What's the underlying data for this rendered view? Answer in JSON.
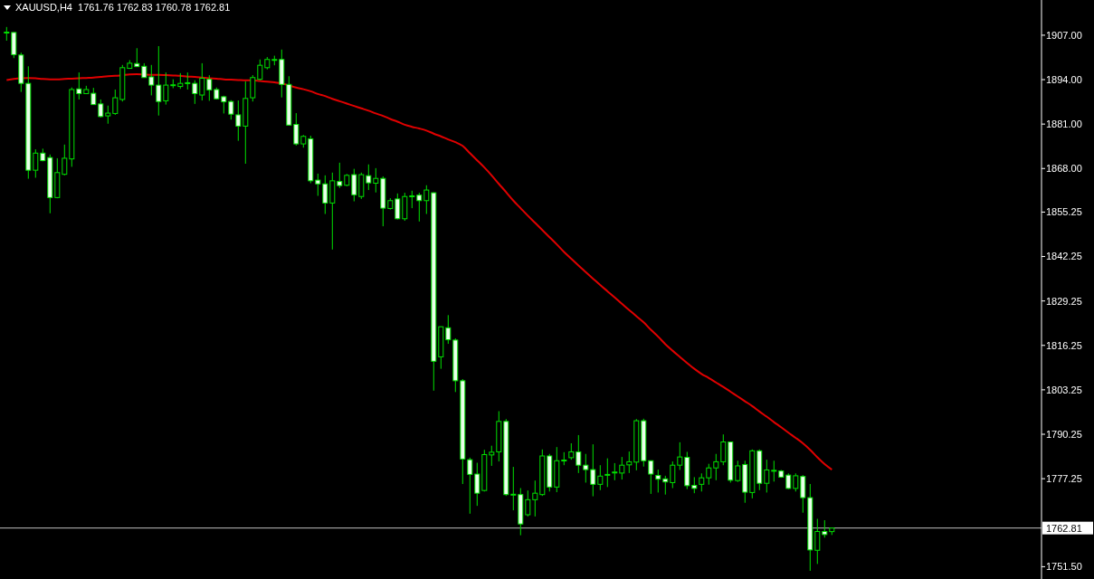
{
  "chart_data": {
    "type": "candlestick",
    "title": "XAUUSD,H4  1761.76 1762.83 1760.78 1762.81",
    "categories": [
      null,
      null,
      null,
      null,
      null,
      null,
      null,
      null,
      null,
      null,
      null,
      null,
      null,
      null,
      null,
      null,
      null,
      null,
      null,
      null,
      null,
      null,
      null,
      null,
      null,
      null,
      null,
      null,
      null,
      null,
      null,
      null,
      null,
      null,
      null,
      null,
      null,
      null,
      null,
      null,
      null,
      null,
      null,
      null,
      null,
      null,
      null,
      null,
      null,
      null,
      null,
      null,
      null,
      null,
      null,
      null,
      null,
      null,
      null,
      null,
      null,
      null,
      null,
      null,
      null,
      null,
      null,
      null,
      null,
      null,
      null,
      null,
      null,
      null,
      null,
      null,
      null,
      null,
      null,
      null,
      null,
      null,
      null,
      null,
      null,
      null,
      null,
      null,
      null,
      null,
      null,
      null,
      null,
      null,
      null,
      null,
      null,
      null,
      null,
      null,
      null,
      null,
      null,
      null,
      null,
      null,
      null,
      null,
      null,
      null,
      null,
      null,
      null,
      null,
      null
    ],
    "color": "#00e000",
    "ohlc": [
      [
        1907.9,
        1909.4,
        1905.4,
        1907.9
      ],
      [
        1907.8,
        1907.8,
        1900.3,
        1901.3
      ],
      [
        1901.2,
        1901.9,
        1890.4,
        1892.9
      ],
      [
        1892.9,
        1897.9,
        1865.0,
        1867.5
      ],
      [
        1867.5,
        1873.6,
        1865.3,
        1872.5
      ],
      [
        1872.5,
        1873.8,
        1870.1,
        1870.3
      ],
      [
        1871.2,
        1872.1,
        1854.9,
        1859.5
      ],
      [
        1859.5,
        1871.0,
        1859.3,
        1866.8
      ],
      [
        1866.3,
        1875.0,
        1866.0,
        1871.0
      ],
      [
        1870.8,
        1891.7,
        1868.5,
        1891.1
      ],
      [
        1891.3,
        1896.1,
        1888.2,
        1889.9
      ],
      [
        1889.9,
        1892.2,
        1889.9,
        1891.1
      ],
      [
        1890.0,
        1891.6,
        1886.7,
        1886.7
      ],
      [
        1886.9,
        1888.2,
        1882.9,
        1883.2
      ],
      [
        1883.4,
        1886.4,
        1881.1,
        1884.2
      ],
      [
        1884.1,
        1891.1,
        1883.7,
        1888.7
      ],
      [
        1888.2,
        1898.3,
        1887.6,
        1897.5
      ],
      [
        1897.3,
        1899.7,
        1897.3,
        1898.8
      ],
      [
        1898.7,
        1903.2,
        1897.8,
        1897.8
      ],
      [
        1897.9,
        1898.8,
        1894.6,
        1894.6
      ],
      [
        1894.8,
        1898.3,
        1889.4,
        1892.4
      ],
      [
        1892.4,
        1903.8,
        1883.5,
        1887.6
      ],
      [
        1887.8,
        1896.1,
        1886.7,
        1892.4
      ],
      [
        1892.4,
        1894.1,
        1891.5,
        1892.5
      ],
      [
        1892.0,
        1895.9,
        1891.3,
        1892.9
      ],
      [
        1893.0,
        1896.1,
        1891.1,
        1893.1
      ],
      [
        1892.9,
        1893.8,
        1886.9,
        1889.9
      ],
      [
        1889.5,
        1898.8,
        1887.9,
        1894.4
      ],
      [
        1894.1,
        1895.3,
        1887.8,
        1891.0
      ],
      [
        1891.1,
        1891.7,
        1888.2,
        1888.4
      ],
      [
        1889.0,
        1889.3,
        1884.1,
        1887.5
      ],
      [
        1887.6,
        1888.0,
        1882.3,
        1883.9
      ],
      [
        1883.7,
        1887.9,
        1876.1,
        1880.4
      ],
      [
        1880.4,
        1893.5,
        1869.4,
        1888.5
      ],
      [
        1888.7,
        1895.3,
        1887.6,
        1894.6
      ],
      [
        1894.1,
        1899.9,
        1893.8,
        1898.2
      ],
      [
        1897.5,
        1900.6,
        1897.0,
        1899.9
      ],
      [
        1899.9,
        1901.0,
        1898.2,
        1899.9
      ],
      [
        1899.9,
        1902.8,
        1888.8,
        1892.6
      ],
      [
        1892.6,
        1895.0,
        1880.7,
        1880.7
      ],
      [
        1880.9,
        1884.2,
        1874.7,
        1875.2
      ],
      [
        1875.2,
        1877.8,
        1874.1,
        1877.4
      ],
      [
        1876.7,
        1877.6,
        1863.7,
        1864.4
      ],
      [
        1864.6,
        1866.5,
        1860.0,
        1863.5
      ],
      [
        1863.5,
        1866.0,
        1854.7,
        1857.9
      ],
      [
        1857.9,
        1866.8,
        1844.3,
        1864.4
      ],
      [
        1864.2,
        1869.7,
        1862.3,
        1863.0
      ],
      [
        1863.1,
        1866.4,
        1862.8,
        1866.0
      ],
      [
        1866.2,
        1867.9,
        1858.4,
        1860.3
      ],
      [
        1859.8,
        1866.8,
        1859.1,
        1866.2
      ],
      [
        1865.9,
        1869.2,
        1861.7,
        1863.8
      ],
      [
        1863.7,
        1868.1,
        1861.0,
        1865.1
      ],
      [
        1865.1,
        1865.7,
        1851.1,
        1856.4
      ],
      [
        1856.3,
        1859.3,
        1856.0,
        1858.6
      ],
      [
        1859.1,
        1860.7,
        1853.1,
        1853.3
      ],
      [
        1853.3,
        1860.9,
        1852.7,
        1859.8
      ],
      [
        1859.9,
        1861.5,
        1856.4,
        1860.0
      ],
      [
        1860.2,
        1860.9,
        1852.5,
        1858.6
      ],
      [
        1858.6,
        1863.1,
        1854.7,
        1861.7
      ],
      [
        1860.9,
        1861.0,
        1803.0,
        1811.6
      ],
      [
        1812.9,
        1821.8,
        1809.4,
        1821.7
      ],
      [
        1821.4,
        1825.1,
        1816.7,
        1817.9
      ],
      [
        1817.8,
        1818.3,
        1802.6,
        1805.9
      ],
      [
        1805.9,
        1806.4,
        1775.7,
        1783.0
      ],
      [
        1782.8,
        1783.4,
        1767.0,
        1778.5
      ],
      [
        1778.6,
        1781.9,
        1769.3,
        1773.0
      ],
      [
        1773.8,
        1785.7,
        1773.5,
        1784.3
      ],
      [
        1784.2,
        1786.9,
        1781.0,
        1785.0
      ],
      [
        1785.1,
        1797.0,
        1782.3,
        1794.0
      ],
      [
        1794.0,
        1794.7,
        1772.2,
        1772.6
      ],
      [
        1772.6,
        1780.7,
        1768.0,
        1772.7
      ],
      [
        1772.6,
        1774.5,
        1760.7,
        1764.0
      ],
      [
        1766.7,
        1773.8,
        1766.2,
        1771.1
      ],
      [
        1771.1,
        1776.7,
        1766.2,
        1773.0
      ],
      [
        1772.6,
        1785.8,
        1772.2,
        1783.9
      ],
      [
        1783.9,
        1784.5,
        1773.5,
        1774.8
      ],
      [
        1774.8,
        1786.5,
        1773.3,
        1782.5
      ],
      [
        1782.6,
        1785.0,
        1781.2,
        1782.7
      ],
      [
        1783.4,
        1787.6,
        1782.8,
        1785.1
      ],
      [
        1785.1,
        1790.0,
        1778.9,
        1781.2
      ],
      [
        1781.2,
        1784.5,
        1776.1,
        1779.9
      ],
      [
        1779.9,
        1787.3,
        1772.1,
        1775.6
      ],
      [
        1775.6,
        1781.2,
        1773.9,
        1778.0
      ],
      [
        1778.4,
        1783.2,
        1774.8,
        1778.5
      ],
      [
        1779.1,
        1781.8,
        1776.8,
        1779.2
      ],
      [
        1778.9,
        1783.6,
        1777.0,
        1781.2
      ],
      [
        1781.3,
        1785.2,
        1778.9,
        1782.2
      ],
      [
        1782.1,
        1794.7,
        1779.7,
        1794.2
      ],
      [
        1794.2,
        1794.8,
        1780.8,
        1782.5
      ],
      [
        1782.5,
        1782.6,
        1772.8,
        1778.6
      ],
      [
        1778.2,
        1779.9,
        1773.2,
        1777.1
      ],
      [
        1777.2,
        1778.1,
        1772.6,
        1776.3
      ],
      [
        1776.1,
        1782.3,
        1774.5,
        1781.2
      ],
      [
        1781.2,
        1787.9,
        1779.8,
        1783.6
      ],
      [
        1783.5,
        1785.1,
        1774.2,
        1775.2
      ],
      [
        1775.3,
        1777.7,
        1773.0,
        1774.4
      ],
      [
        1775.6,
        1778.8,
        1773.5,
        1777.5
      ],
      [
        1777.5,
        1781.6,
        1775.5,
        1780.4
      ],
      [
        1780.4,
        1784.5,
        1776.8,
        1782.2
      ],
      [
        1782.2,
        1790.2,
        1781.2,
        1788.0
      ],
      [
        1788.0,
        1788.0,
        1776.1,
        1776.8
      ],
      [
        1776.7,
        1782.5,
        1776.3,
        1781.0
      ],
      [
        1781.4,
        1782.5,
        1770.2,
        1773.3
      ],
      [
        1773.2,
        1785.8,
        1771.5,
        1785.4
      ],
      [
        1785.4,
        1785.8,
        1773.9,
        1775.9
      ],
      [
        1775.9,
        1782.8,
        1773.2,
        1779.8
      ],
      [
        1779.7,
        1782.5,
        1776.4,
        1779.7
      ],
      [
        1779.5,
        1779.8,
        1777.5,
        1777.7
      ],
      [
        1778.3,
        1778.8,
        1774.2,
        1774.4
      ],
      [
        1774.4,
        1778.8,
        1773.5,
        1778.1
      ],
      [
        1777.9,
        1778.3,
        1767.3,
        1771.7
      ],
      [
        1771.7,
        1775.7,
        1750.3,
        1756.4
      ],
      [
        1756.3,
        1765.5,
        1752.3,
        1761.8
      ],
      [
        1761.8,
        1765.1,
        1760.0,
        1760.9
      ],
      [
        1761.76,
        1762.83,
        1760.78,
        1762.81
      ]
    ],
    "series": [
      {
        "type": "line",
        "color": "#e00000",
        "values": [
          1893.9,
          1894.2,
          1894.4,
          1894.5,
          1894.4,
          1894.2,
          1894.1,
          1894.1,
          1894.2,
          1894.3,
          1894.4,
          1894.5,
          1894.6,
          1894.8,
          1895.0,
          1895.1,
          1895.3,
          1895.5,
          1895.6,
          1895.5,
          1895.4,
          1895.4,
          1895.3,
          1895.2,
          1895.1,
          1894.9,
          1894.8,
          1894.6,
          1894.4,
          1894.3,
          1894.1,
          1894.0,
          1893.9,
          1893.8,
          1893.8,
          1893.6,
          1893.4,
          1893.2,
          1892.9,
          1892.3,
          1891.7,
          1891.2,
          1890.6,
          1889.8,
          1889.2,
          1888.4,
          1887.7,
          1887.0,
          1886.3,
          1885.6,
          1884.9,
          1884.1,
          1883.4,
          1882.5,
          1881.7,
          1880.8,
          1880.2,
          1879.7,
          1879.1,
          1878.2,
          1877.4,
          1876.5,
          1875.7,
          1874.6,
          1872.5,
          1870.4,
          1868.3,
          1866.0,
          1863.5,
          1861.1,
          1858.6,
          1856.4,
          1854.2,
          1852.1,
          1850.0,
          1847.9,
          1845.8,
          1843.6,
          1841.6,
          1839.6,
          1837.7,
          1835.8,
          1833.9,
          1832.1,
          1830.3,
          1828.4,
          1826.6,
          1824.8,
          1823.0,
          1820.8,
          1818.8,
          1816.6,
          1814.7,
          1812.9,
          1811.1,
          1809.4,
          1807.9,
          1806.7,
          1805.4,
          1804.1,
          1802.7,
          1801.3,
          1799.9,
          1798.5,
          1796.9,
          1795.4,
          1793.8,
          1792.3,
          1790.7,
          1789.2,
          1787.6,
          1785.7,
          1783.5,
          1781.5,
          1779.9
        ]
      }
    ],
    "ylim": [
      1747.9,
      1917.3
    ],
    "yticks": [
      {
        "value": 1907,
        "label": "1907.00"
      },
      {
        "value": 1894,
        "label": "1894.00"
      },
      {
        "value": 1881,
        "label": "1881.00"
      },
      {
        "value": 1868,
        "label": "1868.00"
      },
      {
        "value": 1855.25,
        "label": "1855.25"
      },
      {
        "value": 1842.25,
        "label": "1842.25"
      },
      {
        "value": 1829.25,
        "label": "1829.25"
      },
      {
        "value": 1816.25,
        "label": "1816.25"
      },
      {
        "value": 1803.25,
        "label": "1803.25"
      },
      {
        "value": 1790.25,
        "label": "1790.25"
      },
      {
        "value": 1777.25,
        "label": "1777.25"
      },
      {
        "value": 1751.5,
        "label": "1751.50"
      }
    ],
    "ref_lines": [
      {
        "axis": "y",
        "value": 1762.81,
        "label": "1762.81",
        "color": "#c0c0c0"
      }
    ],
    "tick_labels": "y"
  }
}
